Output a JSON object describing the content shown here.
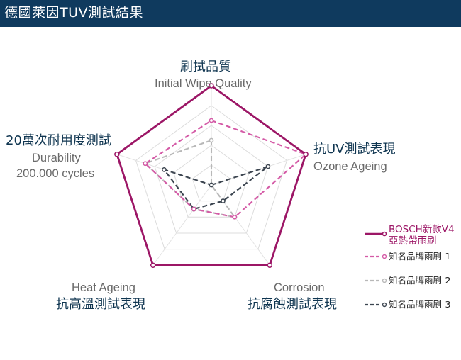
{
  "header": {
    "title": "德國萊因TUV測試結果"
  },
  "chart_data": {
    "type": "radar",
    "axes": [
      {
        "zh": "刷拭品質",
        "en": "Initial Wipe Quality"
      },
      {
        "zh": "抗UV測試表現",
        "en": "Ozone Ageing"
      },
      {
        "zh": "抗腐蝕測試表現",
        "en": "Corrosion"
      },
      {
        "zh": "抗高溫測試表現",
        "en": "Heat Ageing"
      },
      {
        "zh": "20萬次耐用度測試",
        "en": "Durability",
        "en2": "200.000 cycles"
      }
    ],
    "range": [
      0,
      10
    ],
    "levels": 5,
    "series": [
      {
        "name": "BOSCH新款V4",
        "name2": "亞熱帶雨刷",
        "values": [
          10,
          10,
          10,
          10,
          10
        ],
        "color": "#9c1666",
        "style": "solid"
      },
      {
        "name": "知名品牌雨刷-1",
        "values": [
          6.5,
          10,
          4,
          3,
          7
        ],
        "color": "#d45aa6",
        "style": "dashed"
      },
      {
        "name": "知名品牌雨刷-2",
        "values": [
          4.5,
          0,
          4,
          3,
          7
        ],
        "color": "#b8b8b8",
        "style": "dashed"
      },
      {
        "name": "知名品牌雨刷-3",
        "values": [
          0,
          6,
          2,
          3,
          5
        ],
        "color": "#3c4550",
        "style": "dashed"
      }
    ]
  }
}
